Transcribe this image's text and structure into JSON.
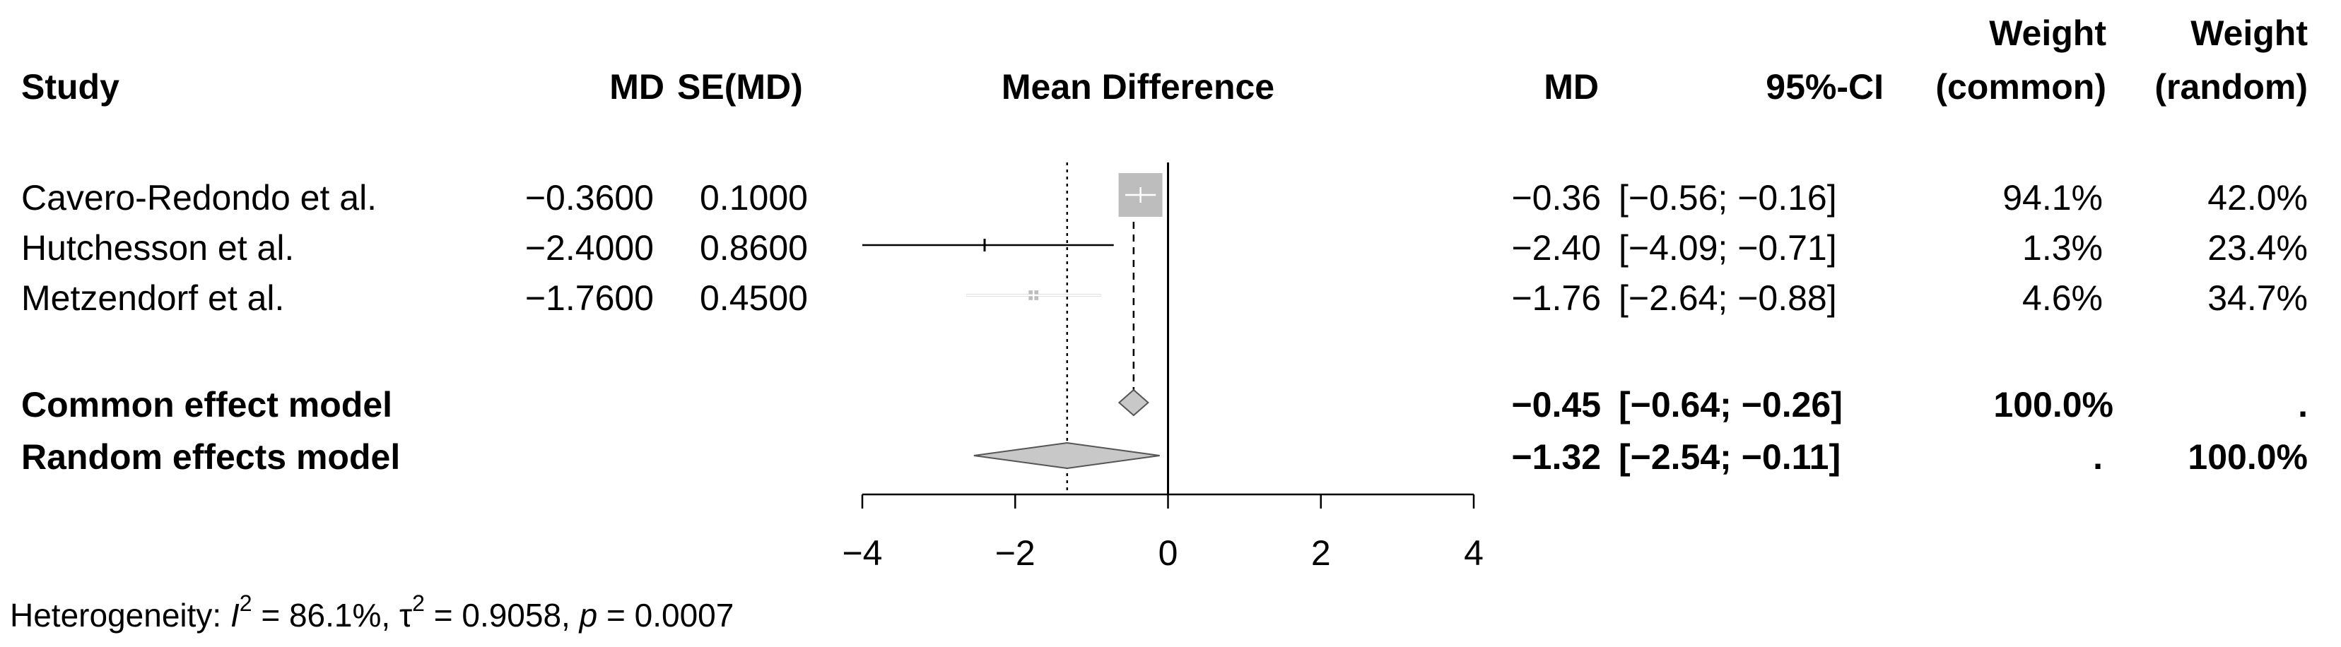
{
  "headers": {
    "study": "Study",
    "md": "MD",
    "se": "SE(MD)",
    "plot": "Mean Difference",
    "md2": "MD",
    "ci": "95%-CI",
    "weight_common_1": "Weight",
    "weight_common_2": "(common)",
    "weight_random_1": "Weight",
    "weight_random_2": "(random)"
  },
  "studies": [
    {
      "name": "Cavero-Redondo et al.",
      "md": "−0.3600",
      "se": "0.1000",
      "est": "−0.36",
      "ci": "[−0.56; −0.16]",
      "w_common": "94.1%",
      "w_random": "42.0%"
    },
    {
      "name": "Hutchesson et al.",
      "md": "−2.4000",
      "se": "0.8600",
      "est": "−2.40",
      "ci": "[−4.09; −0.71]",
      "w_common": "1.3%",
      "w_random": "23.4%"
    },
    {
      "name": "Metzendorf et al.",
      "md": "−1.7600",
      "se": "0.4500",
      "est": "−1.76",
      "ci": "[−2.64; −0.88]",
      "w_common": "4.6%",
      "w_random": "34.7%"
    }
  ],
  "pooled": [
    {
      "name": "Common effect model",
      "est": "−0.45",
      "ci": "[−0.64; −0.26]",
      "w_common": "100.0%",
      "w_random": "."
    },
    {
      "name": "Random effects model",
      "est": "−1.32",
      "ci": "[−2.54; −0.11]",
      "w_common": ".",
      "w_random": "100.0%"
    }
  ],
  "heterogeneity": {
    "prefix": "Heterogeneity: ",
    "i2_symbol": "I",
    "i2_value": " = 86.1%, ",
    "tau_symbol": "τ",
    "tau_value": " = 0.9058, ",
    "p_symbol": "p",
    "p_value": " = 0.0007"
  },
  "chart_data": {
    "type": "forest",
    "xlim": [
      -4,
      4
    ],
    "ticks": [
      -4,
      -2,
      0,
      2,
      4
    ],
    "tick_labels": [
      "−4",
      "−2",
      "0",
      "2",
      "4"
    ],
    "reference_line": 0,
    "studies": [
      {
        "name": "Cavero-Redondo et al.",
        "est": -0.36,
        "lower": -0.56,
        "upper": -0.16,
        "weight_common": 94.1
      },
      {
        "name": "Hutchesson et al.",
        "est": -2.4,
        "lower": -4.09,
        "upper": -0.71,
        "weight_common": 1.3
      },
      {
        "name": "Metzendorf et al.",
        "est": -1.76,
        "lower": -2.64,
        "upper": -0.88,
        "weight_common": 4.6
      }
    ],
    "common": {
      "est": -0.45,
      "lower": -0.64,
      "upper": -0.26
    },
    "random": {
      "est": -1.32,
      "lower": -2.54,
      "upper": -0.11
    },
    "colors": {
      "square": "#bdbdbd",
      "diamond": "#c8c8c8",
      "line": "#000000"
    }
  }
}
